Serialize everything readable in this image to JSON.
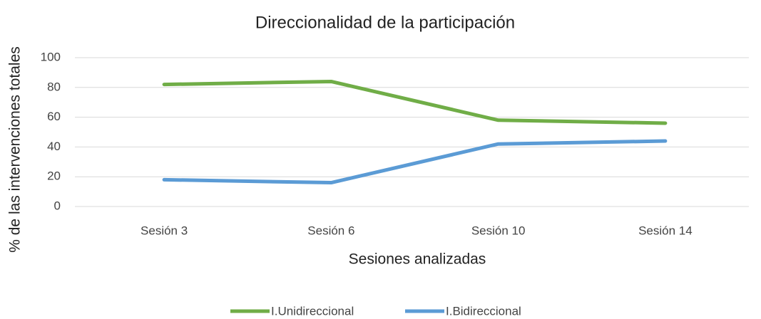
{
  "chart_data": {
    "type": "line",
    "title": "Direccionalidad de la participación",
    "x_label": "Sesiones analizadas",
    "y_label": "% de las  intervenciones totales",
    "categories": [
      "Sesión 3",
      "Sesión 6",
      "Sesión 10",
      "Sesión 14"
    ],
    "series": [
      {
        "name": "I.Unidireccional",
        "color": "#70ad47",
        "values": [
          82,
          84,
          58,
          56
        ]
      },
      {
        "name": "I.Bidireccional",
        "color": "#5b9bd5",
        "values": [
          18,
          16,
          42,
          44
        ]
      }
    ],
    "ylim": [
      0,
      100
    ],
    "yticks": [
      0,
      20,
      40,
      60,
      80,
      100
    ],
    "grid": true,
    "legend": "bottom"
  }
}
